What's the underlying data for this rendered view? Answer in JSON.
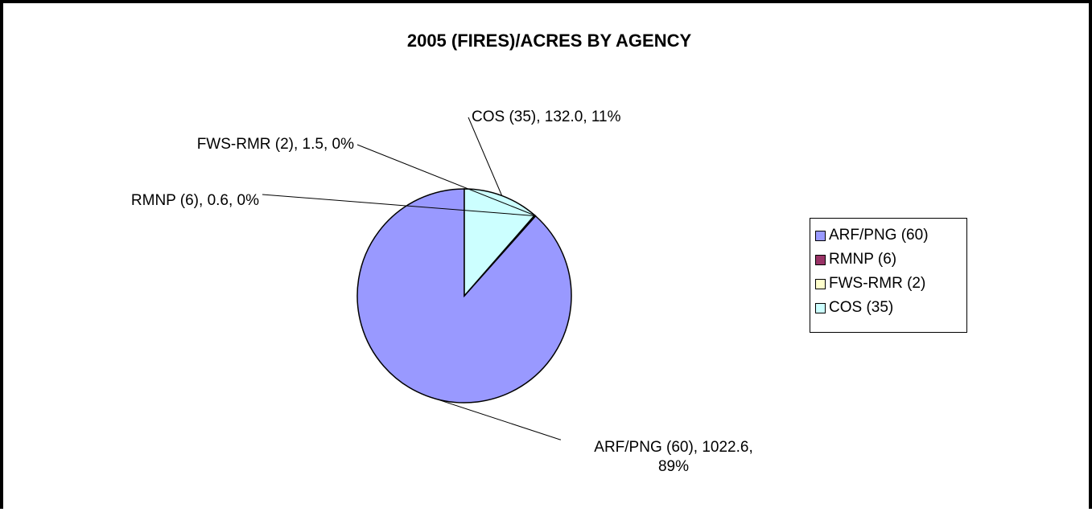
{
  "chart_data": {
    "type": "pie",
    "title": "2005 (FIRES)/ACRES BY AGENCY",
    "slices": [
      {
        "name": "ARF/PNG (60)",
        "value": 1022.6,
        "percent": 89,
        "color": "#9999FF",
        "label_lines": [
          "ARF/PNG (60), 1022.6,",
          "89%"
        ]
      },
      {
        "name": "RMNP (6)",
        "value": 0.6,
        "percent": 0,
        "color": "#993366",
        "label_lines": [
          "RMNP (6), 0.6, 0%"
        ]
      },
      {
        "name": "FWS-RMR (2)",
        "value": 1.5,
        "percent": 0,
        "color": "#FFFFCC",
        "label_lines": [
          "FWS-RMR (2), 1.5, 0%"
        ]
      },
      {
        "name": "COS (35)",
        "value": 132.0,
        "percent": 11,
        "color": "#CCFFFF",
        "label_lines": [
          "COS (35), 132.0, 11%"
        ]
      }
    ],
    "start_angle": "12 o'clock",
    "direction": "counter-clockwise",
    "legend_position": "right"
  },
  "legend": {
    "items": [
      {
        "label": "ARF/PNG (60)",
        "color": "#9999FF"
      },
      {
        "label": "RMNP (6)",
        "color": "#993366"
      },
      {
        "label": "FWS-RMR (2)",
        "color": "#FFFFCC"
      },
      {
        "label": "COS (35)",
        "color": "#CCFFFF"
      }
    ]
  }
}
